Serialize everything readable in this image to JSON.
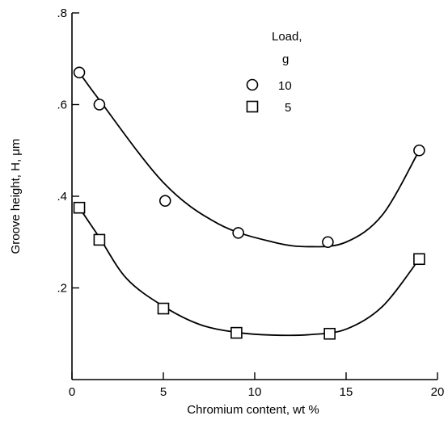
{
  "chart_data": {
    "type": "scatter",
    "title": "",
    "xlabel": "Chromium content, wt %",
    "ylabel": "Groove height, H, μm",
    "xlim": [
      0,
      20
    ],
    "ylim": [
      0,
      0.8
    ],
    "x_ticks": [
      0,
      5,
      10,
      15,
      20
    ],
    "x_tick_labels": [
      "0",
      "5",
      "10",
      "15",
      "20"
    ],
    "y_ticks": [
      0.2,
      0.4,
      0.6,
      0.8
    ],
    "y_tick_labels": [
      ".2",
      ".4",
      ".6",
      ".8"
    ],
    "legend": {
      "title_line1": "Load,",
      "title_line2": "g",
      "placement": "top-right"
    },
    "series": [
      {
        "name": "10",
        "marker": "circle",
        "points": [
          [
            0.4,
            0.67
          ],
          [
            1.5,
            0.6
          ],
          [
            5.1,
            0.39
          ],
          [
            9.1,
            0.32
          ],
          [
            14.0,
            0.3
          ],
          [
            19.0,
            0.5
          ]
        ],
        "curve": [
          [
            0.4,
            0.67
          ],
          [
            1.5,
            0.61
          ],
          [
            5.0,
            0.43
          ],
          [
            8.0,
            0.34
          ],
          [
            11.0,
            0.3
          ],
          [
            13.0,
            0.29
          ],
          [
            15.0,
            0.3
          ],
          [
            17.0,
            0.36
          ],
          [
            19.0,
            0.5
          ]
        ]
      },
      {
        "name": "5",
        "marker": "square",
        "points": [
          [
            0.4,
            0.375
          ],
          [
            1.5,
            0.305
          ],
          [
            5.0,
            0.155
          ],
          [
            9.0,
            0.102
          ],
          [
            14.1,
            0.1
          ],
          [
            19.0,
            0.263
          ]
        ],
        "curve": [
          [
            0.4,
            0.375
          ],
          [
            1.5,
            0.31
          ],
          [
            3.0,
            0.22
          ],
          [
            5.0,
            0.16
          ],
          [
            7.0,
            0.12
          ],
          [
            9.0,
            0.103
          ],
          [
            11.0,
            0.097
          ],
          [
            13.0,
            0.098
          ],
          [
            15.0,
            0.11
          ],
          [
            17.0,
            0.16
          ],
          [
            19.0,
            0.263
          ]
        ]
      }
    ]
  }
}
